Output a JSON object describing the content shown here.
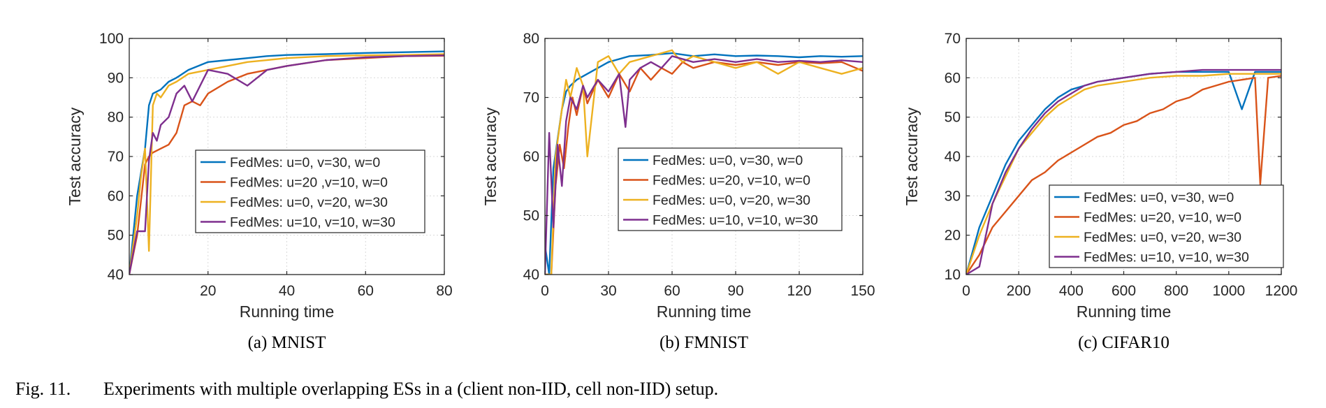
{
  "figure": {
    "caption_label": "Fig. 11.",
    "caption_text": "Experiments with multiple overlapping ESs in a (client non-IID, cell non-IID) setup."
  },
  "chart_data": [
    {
      "type": "line",
      "subcaption": "(a)  MNIST",
      "xlabel": "Running time",
      "ylabel": "Test accuracy",
      "xlim": [
        0,
        80
      ],
      "ylim": [
        40,
        100
      ],
      "xticks": [
        20,
        40,
        60,
        80
      ],
      "yticks": [
        40,
        50,
        60,
        70,
        80,
        90,
        100
      ],
      "grid": true,
      "legend_position": "center-right",
      "series": [
        {
          "name": "FedMes: u=0, v=30, w=0",
          "color": "#0072BD",
          "x": [
            0,
            2,
            4,
            5,
            6,
            8,
            10,
            12,
            15,
            20,
            25,
            30,
            35,
            40,
            50,
            60,
            70,
            80
          ],
          "y": [
            40,
            60,
            72,
            83,
            86,
            87,
            89,
            90,
            92,
            94,
            94.5,
            95,
            95.5,
            95.8,
            96,
            96.3,
            96.5,
            96.7
          ]
        },
        {
          "name": "FedMes: u=20 ,v=10, w=0",
          "color": "#D95319",
          "x": [
            0,
            2,
            4,
            5,
            6,
            8,
            10,
            12,
            14,
            16,
            18,
            20,
            25,
            30,
            40,
            50,
            60,
            70,
            80
          ],
          "y": [
            40,
            50,
            68,
            70,
            71,
            72,
            73,
            76,
            83,
            84,
            83,
            86,
            89,
            91,
            93,
            94.5,
            95,
            95.5,
            95.6
          ]
        },
        {
          "name": "FedMes: u=0, v=20, w=30",
          "color": "#EDB120",
          "x": [
            0,
            2,
            3,
            4,
            5,
            6,
            7,
            8,
            10,
            12,
            15,
            20,
            25,
            30,
            40,
            50,
            60,
            70,
            80
          ],
          "y": [
            40,
            55,
            65,
            72,
            46,
            83,
            86,
            85,
            88,
            89,
            91,
            92,
            93,
            94,
            95,
            95.5,
            95.7,
            95.8,
            96
          ]
        },
        {
          "name": "FedMes: u=10, v=10, w=30",
          "color": "#7E2F8E",
          "x": [
            0,
            2,
            4,
            5,
            6,
            7,
            8,
            10,
            12,
            14,
            16,
            18,
            20,
            25,
            30,
            35,
            40,
            50,
            60,
            70,
            80
          ],
          "y": [
            40,
            51,
            51,
            69,
            76,
            74,
            78,
            80,
            86,
            88,
            84,
            88,
            92,
            91,
            88,
            92,
            93,
            94.5,
            95.2,
            95.5,
            95.7
          ]
        }
      ]
    },
    {
      "type": "line",
      "subcaption": "(b)  FMNIST",
      "xlabel": "Running time",
      "ylabel": "Test accuracy",
      "xlim": [
        0,
        150
      ],
      "ylim": [
        40,
        80
      ],
      "xticks": [
        0,
        30,
        60,
        90,
        120,
        150
      ],
      "yticks": [
        40,
        50,
        60,
        70,
        80
      ],
      "grid": true,
      "legend_position": "center-right",
      "series": [
        {
          "name": "FedMes: u=0, v=30, w=0",
          "color": "#0072BD",
          "x": [
            0,
            2,
            4,
            6,
            8,
            10,
            12,
            15,
            20,
            25,
            30,
            40,
            50,
            60,
            70,
            80,
            90,
            100,
            110,
            120,
            130,
            140,
            150
          ],
          "y": [
            45,
            40,
            58,
            63,
            68,
            71,
            72,
            73,
            74,
            75,
            76,
            77,
            77.2,
            77.5,
            77,
            77.3,
            77,
            77.1,
            77,
            76.8,
            77,
            76.9,
            77
          ]
        },
        {
          "name": "FedMes: u=20, v=10, w=0",
          "color": "#D95319",
          "x": [
            0,
            3,
            5,
            7,
            9,
            11,
            13,
            15,
            18,
            20,
            25,
            30,
            35,
            40,
            45,
            50,
            55,
            60,
            65,
            70,
            80,
            90,
            100,
            110,
            120,
            130,
            140,
            150
          ],
          "y": [
            40,
            40,
            55,
            62,
            58,
            65,
            70,
            67,
            72,
            69,
            73,
            70,
            74,
            71,
            75,
            73,
            75,
            74,
            76,
            75,
            76,
            75.5,
            76,
            75.5,
            76,
            75.8,
            76,
            74.5
          ]
        },
        {
          "name": "FedMes: u=0, v=20, w=30",
          "color": "#EDB120",
          "x": [
            0,
            3,
            5,
            8,
            10,
            12,
            15,
            18,
            20,
            25,
            30,
            35,
            40,
            50,
            60,
            62,
            65,
            70,
            80,
            90,
            100,
            110,
            120,
            130,
            140,
            150
          ],
          "y": [
            40,
            40,
            60,
            68,
            73,
            70,
            75,
            72,
            60,
            76,
            77,
            74,
            76,
            77,
            78,
            77,
            76,
            77,
            76,
            75,
            76,
            74,
            76,
            75,
            74,
            75
          ]
        },
        {
          "name": "FedMes: u=10, v=10, w=30",
          "color": "#7E2F8E",
          "x": [
            0,
            2,
            4,
            6,
            8,
            10,
            12,
            15,
            18,
            20,
            25,
            30,
            35,
            38,
            40,
            45,
            50,
            55,
            60,
            70,
            80,
            90,
            100,
            110,
            120,
            130,
            140,
            150
          ],
          "y": [
            40,
            64,
            48,
            62,
            55,
            66,
            70,
            68,
            72,
            70,
            73,
            71,
            74,
            65,
            73,
            75,
            76,
            75,
            77,
            76,
            76.5,
            76,
            76.5,
            76,
            76.2,
            76,
            76.3,
            76
          ]
        }
      ]
    },
    {
      "type": "line",
      "subcaption": "(c)  CIFAR10",
      "xlabel": "Running time",
      "ylabel": "Test accuracy",
      "xlim": [
        0,
        1200
      ],
      "ylim": [
        10,
        70
      ],
      "xticks": [
        0,
        200,
        400,
        600,
        800,
        1000,
        1200
      ],
      "yticks": [
        10,
        20,
        30,
        40,
        50,
        60,
        70
      ],
      "grid": true,
      "legend_position": "bottom-right",
      "series": [
        {
          "name": "FedMes: u=0, v=30, w=0",
          "color": "#0072BD",
          "x": [
            0,
            50,
            100,
            150,
            200,
            250,
            300,
            350,
            400,
            450,
            500,
            600,
            700,
            800,
            900,
            1000,
            1050,
            1100,
            1200
          ],
          "y": [
            10,
            22,
            30,
            38,
            44,
            48,
            52,
            55,
            57,
            58,
            59,
            60,
            61,
            61.5,
            61.5,
            61.5,
            52,
            61.5,
            61.5
          ]
        },
        {
          "name": "FedMes: u=20, v=10, w=0",
          "color": "#D95319",
          "x": [
            0,
            50,
            100,
            150,
            200,
            250,
            300,
            350,
            400,
            450,
            500,
            550,
            600,
            650,
            700,
            750,
            800,
            850,
            900,
            950,
            1000,
            1050,
            1100,
            1120,
            1150,
            1200
          ],
          "y": [
            10,
            15,
            22,
            26,
            30,
            34,
            36,
            39,
            41,
            43,
            45,
            46,
            48,
            49,
            51,
            52,
            54,
            55,
            57,
            58,
            59,
            59.5,
            60,
            33,
            60,
            60.5
          ]
        },
        {
          "name": "FedMes: u=0, v=20, w=30",
          "color": "#EDB120",
          "x": [
            0,
            50,
            100,
            150,
            200,
            250,
            300,
            350,
            400,
            450,
            500,
            600,
            700,
            800,
            900,
            1000,
            1100,
            1200
          ],
          "y": [
            10,
            20,
            28,
            35,
            42,
            46,
            50,
            53,
            55,
            57,
            58,
            59,
            60,
            60.5,
            60.5,
            61,
            61,
            61
          ]
        },
        {
          "name": "FedMes: u=10, v=10, w=30",
          "color": "#7E2F8E",
          "x": [
            0,
            50,
            100,
            150,
            200,
            250,
            300,
            350,
            400,
            450,
            500,
            600,
            700,
            800,
            900,
            1000,
            1100,
            1200
          ],
          "y": [
            10,
            12,
            28,
            36,
            42,
            47,
            51,
            54,
            56,
            58,
            59,
            60,
            61,
            61.5,
            62,
            62,
            62,
            62
          ]
        }
      ]
    }
  ]
}
